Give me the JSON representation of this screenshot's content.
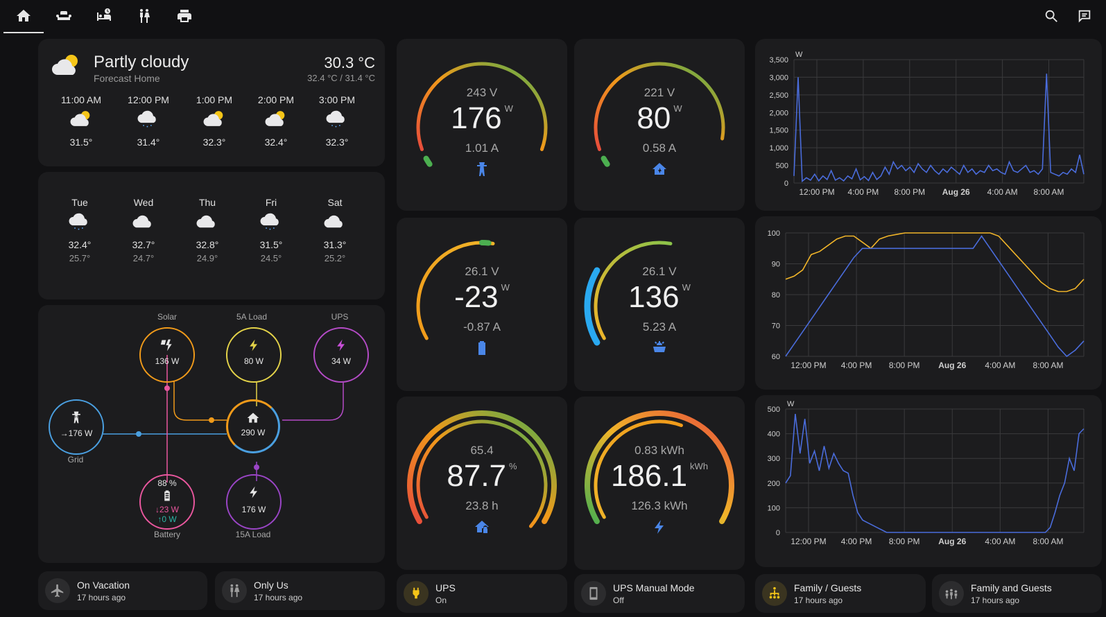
{
  "nav": {
    "tabs": [
      {
        "icon": "home-icon"
      },
      {
        "icon": "sofa-icon"
      },
      {
        "icon": "bed-clock-icon"
      },
      {
        "icon": "people-icon"
      },
      {
        "icon": "printer-icon"
      }
    ],
    "actions": [
      {
        "icon": "search-icon"
      },
      {
        "icon": "assist-icon"
      }
    ]
  },
  "weather": {
    "condition": "Partly cloudy",
    "location": "Forecast Home",
    "temperature": "30.3 °C",
    "range": "32.4 °C / 31.4 °C",
    "hourly": [
      {
        "time": "11:00 AM",
        "temp": "31.5°",
        "icon": "partly-cloudy-icon"
      },
      {
        "time": "12:00 PM",
        "temp": "31.4°",
        "icon": "rainy-icon"
      },
      {
        "time": "1:00 PM",
        "temp": "32.3°",
        "icon": "partly-cloudy-icon"
      },
      {
        "time": "2:00 PM",
        "temp": "32.4°",
        "icon": "partly-cloudy-icon"
      },
      {
        "time": "3:00 PM",
        "temp": "32.3°",
        "icon": "rainy-icon"
      }
    ],
    "daily": [
      {
        "day": "Tue",
        "high": "32.4°",
        "low": "25.7°",
        "icon": "rainy-icon"
      },
      {
        "day": "Wed",
        "high": "32.7°",
        "low": "24.7°",
        "icon": "cloudy-icon"
      },
      {
        "day": "Thu",
        "high": "32.8°",
        "low": "24.9°",
        "icon": "cloudy-icon"
      },
      {
        "day": "Fri",
        "high": "31.5°",
        "low": "24.5°",
        "icon": "rainy-icon"
      },
      {
        "day": "Sat",
        "high": "31.3°",
        "low": "25.2°",
        "icon": "cloudy-icon"
      }
    ]
  },
  "power_flow": {
    "solar": {
      "label": "Solar",
      "value": "136 W"
    },
    "load5a": {
      "label": "5A Load",
      "value": "80 W"
    },
    "ups": {
      "label": "UPS",
      "value": "34 W"
    },
    "grid": {
      "label": "Grid",
      "value": "→176 W"
    },
    "home": {
      "value": "290 W"
    },
    "battery": {
      "label": "Battery",
      "soc": "88 %",
      "out": "↓23 W",
      "in": "↑0 W"
    },
    "load15a": {
      "label": "15A Load",
      "value": "176 W"
    }
  },
  "gauges": [
    {
      "top": "243 V",
      "value": "176",
      "unit": "W",
      "bottom": "1.01 A",
      "icon": "transmission-tower-icon",
      "fill": 0.5
    },
    {
      "top": "221 V",
      "value": "80",
      "unit": "W",
      "bottom": "0.58 A",
      "icon": "home-lightning-icon",
      "fill": 0.35
    },
    {
      "top": "26.1 V",
      "value": "-23",
      "unit": "W",
      "bottom": "-0.87 A",
      "icon": "battery-icon",
      "fill": 0.6
    },
    {
      "top": "26.1 V",
      "value": "136",
      "unit": "W",
      "bottom": "5.23 A",
      "icon": "solar-panel-icon",
      "fill": 0.5
    },
    {
      "top": "65.4",
      "value": "87.7",
      "unit": "%",
      "bottom": "23.8 h",
      "icon": "home-lock-icon",
      "fill": 0.877
    },
    {
      "top": "0.83 kWh",
      "value": "186.1",
      "unit": "kWh",
      "bottom": "126.3 kWh",
      "icon": "lightning-icon",
      "fill": 0.7
    }
  ],
  "buttons": [
    {
      "name": "On Vacation",
      "state": "17 hours ago",
      "icon": "airplane-icon",
      "color": "#9e9e9e"
    },
    {
      "name": "Only Us",
      "state": "17 hours ago",
      "icon": "people-icon",
      "color": "#9e9e9e"
    },
    {
      "name": "UPS",
      "state": "On",
      "icon": "power-plug-icon",
      "color": "#f5c518"
    },
    {
      "name": "UPS Manual Mode",
      "state": "Off",
      "icon": "phone-icon",
      "color": "#9e9e9e"
    },
    {
      "name": "Family / Guests",
      "state": "17 hours ago",
      "icon": "family-tree-icon",
      "color": "#f5c518"
    },
    {
      "name": "Family and Guests",
      "state": "17 hours ago",
      "icon": "people-group-icon",
      "color": "#9e9e9e"
    }
  ],
  "chart_data": [
    {
      "type": "line",
      "ylabel": "W",
      "ylim": [
        0,
        3500
      ],
      "yticks": [
        "0",
        "500",
        "1,000",
        "1,500",
        "2,000",
        "2,500",
        "3,000",
        "3,500"
      ],
      "xticks": [
        "12:00 PM",
        "4:00 PM",
        "8:00 PM",
        "Aug 26",
        "4:00 AM",
        "8:00 AM"
      ],
      "grid": true,
      "series": [
        {
          "color": "#4a6cdb",
          "values": [
            200,
            3000,
            50,
            150,
            80,
            250,
            60,
            200,
            100,
            350,
            80,
            150,
            60,
            200,
            120,
            400,
            90,
            180,
            70,
            300,
            100,
            200,
            450,
            250,
            600,
            400,
            500,
            350,
            450,
            300,
            550,
            400,
            300,
            500,
            350,
            250,
            400,
            300,
            450,
            350,
            250,
            500,
            300,
            400,
            250,
            350,
            300,
            500,
            350,
            400,
            300,
            250,
            600,
            350,
            300,
            400,
            500,
            300,
            350,
            250,
            400,
            3100,
            300,
            250,
            200,
            300,
            250,
            400,
            300,
            800,
            250
          ]
        }
      ]
    },
    {
      "type": "line",
      "ylim": [
        60,
        100
      ],
      "yticks": [
        "60",
        "70",
        "80",
        "90",
        "100"
      ],
      "xticks": [
        "12:00 PM",
        "4:00 PM",
        "8:00 PM",
        "Aug 26",
        "4:00 AM",
        "8:00 AM"
      ],
      "grid": true,
      "series": [
        {
          "color": "#f0b429",
          "values": [
            85,
            86,
            88,
            93,
            94,
            96,
            98,
            99,
            99,
            97,
            95,
            98,
            99,
            99.5,
            100,
            100,
            100,
            100,
            100,
            100,
            100,
            100,
            100,
            100,
            100,
            99,
            96,
            93,
            90,
            87,
            84,
            82,
            81,
            81,
            82,
            85
          ]
        },
        {
          "color": "#4a6cdb",
          "values": [
            60,
            64,
            68,
            72,
            76,
            80,
            84,
            88,
            92,
            95,
            95,
            95,
            95,
            95,
            95,
            95,
            95,
            95,
            95,
            95,
            95,
            95,
            95,
            99,
            95,
            91,
            87,
            83,
            79,
            75,
            71,
            67,
            63,
            60,
            62,
            65
          ]
        }
      ]
    },
    {
      "type": "line",
      "ylabel": "W",
      "ylim": [
        0,
        500
      ],
      "yticks": [
        "0",
        "100",
        "200",
        "300",
        "400",
        "500"
      ],
      "xticks": [
        "12:00 PM",
        "4:00 PM",
        "8:00 PM",
        "Aug 26",
        "4:00 AM",
        "8:00 AM"
      ],
      "grid": true,
      "series": [
        {
          "color": "#4a6cdb",
          "values": [
            200,
            230,
            480,
            320,
            460,
            280,
            330,
            250,
            350,
            260,
            320,
            280,
            250,
            240,
            150,
            80,
            50,
            40,
            30,
            20,
            10,
            0,
            0,
            0,
            0,
            0,
            0,
            0,
            0,
            0,
            0,
            0,
            0,
            0,
            0,
            0,
            0,
            0,
            0,
            0,
            0,
            0,
            0,
            0,
            0,
            0,
            0,
            0,
            0,
            0,
            0,
            0,
            0,
            0,
            0,
            20,
            80,
            150,
            200,
            300,
            250,
            400,
            420
          ]
        }
      ]
    }
  ]
}
